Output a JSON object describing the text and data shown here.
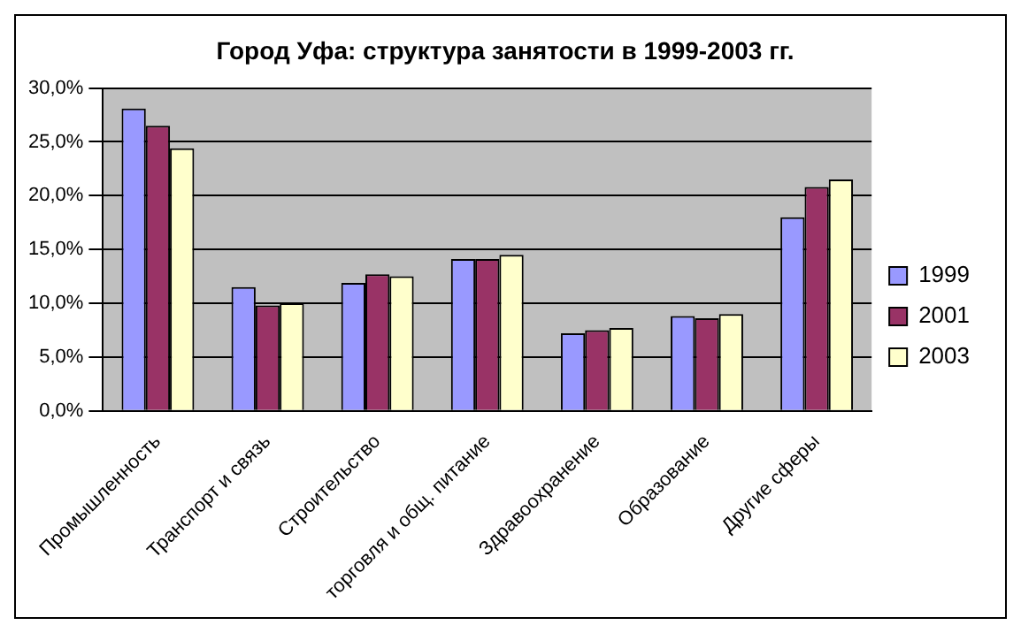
{
  "chart_data": {
    "type": "bar",
    "title": "Город Уфа: структура занятости в 1999-2003 гг.",
    "categories": [
      "Промышленность",
      "Транспорт и связь",
      "Строительство",
      "торговля и общ. питание",
      "Здравоохранение",
      "Образование",
      "Другие сферы"
    ],
    "series": [
      {
        "name": "1999",
        "color": "#9999ff",
        "values": [
          28.1,
          11.5,
          11.9,
          14.1,
          7.2,
          8.8,
          18.0
        ]
      },
      {
        "name": "2001",
        "color": "#993366",
        "values": [
          26.5,
          9.8,
          12.7,
          14.1,
          7.5,
          8.6,
          20.8
        ]
      },
      {
        "name": "2003",
        "color": "#ffffcc",
        "values": [
          24.4,
          10.0,
          12.5,
          14.5,
          7.7,
          9.0,
          21.5
        ]
      }
    ],
    "ylim": [
      0,
      30
    ],
    "yticks": [
      {
        "value": 0,
        "label": "0,0%"
      },
      {
        "value": 5,
        "label": "5,0%"
      },
      {
        "value": 10,
        "label": "10,0%"
      },
      {
        "value": 15,
        "label": "15,0%"
      },
      {
        "value": 20,
        "label": "20,0%"
      },
      {
        "value": 25,
        "label": "25,0%"
      },
      {
        "value": 30,
        "label": "30,0%"
      }
    ],
    "grid": "y",
    "legend": "right"
  }
}
